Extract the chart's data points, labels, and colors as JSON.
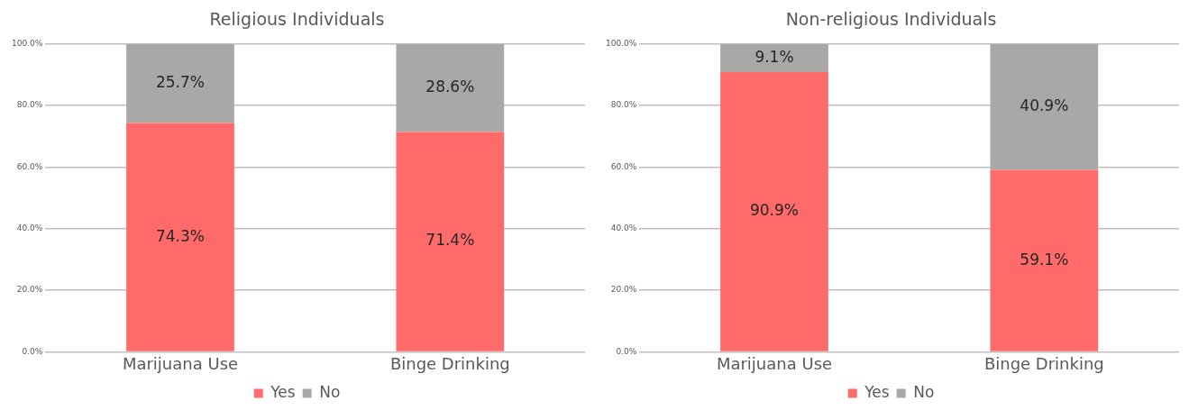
{
  "chart_data": [
    {
      "type": "bar",
      "title": "Religious Individuals",
      "categories": [
        "Marijuana Use",
        "Binge Drinking"
      ],
      "stacked": true,
      "series": [
        {
          "name": "Yes",
          "color": "#ff6b6b",
          "values": [
            74.3,
            71.4
          ],
          "value_labels": [
            "74.3%",
            "71.4%"
          ]
        },
        {
          "name": "No",
          "color": "#a9a8a7",
          "values": [
            25.7,
            28.6
          ],
          "value_labels": [
            "25.7%",
            "28.6%"
          ]
        }
      ],
      "ylim": [
        0,
        100
      ],
      "yticks": [
        {
          "value": 0,
          "label": "0.0%"
        },
        {
          "value": 20,
          "label": "20.0%"
        },
        {
          "value": 40,
          "label": "40.0%"
        },
        {
          "value": 60,
          "label": "60.0%"
        },
        {
          "value": 80,
          "label": "80.0%"
        },
        {
          "value": 100,
          "label": "100.0%"
        }
      ],
      "grid": "y",
      "legend": "bottom"
    },
    {
      "type": "bar",
      "title": "Non-religious Individuals",
      "categories": [
        "Marijuana Use",
        "Binge Drinking"
      ],
      "stacked": true,
      "series": [
        {
          "name": "Yes",
          "color": "#ff6b6b",
          "values": [
            90.9,
            59.1
          ],
          "value_labels": [
            "90.9%",
            "59.1%"
          ]
        },
        {
          "name": "No",
          "color": "#a9a8a7",
          "values": [
            9.1,
            40.9
          ],
          "value_labels": [
            "9.1%",
            "40.9%"
          ]
        }
      ],
      "ylim": [
        0,
        100
      ],
      "yticks": [
        {
          "value": 0,
          "label": "0.0%"
        },
        {
          "value": 20,
          "label": "20.0%"
        },
        {
          "value": 40,
          "label": "40.0%"
        },
        {
          "value": 60,
          "label": "60.0%"
        },
        {
          "value": 80,
          "label": "80.0%"
        },
        {
          "value": 100,
          "label": "100.0%"
        }
      ],
      "grid": "y",
      "legend": "bottom"
    }
  ]
}
